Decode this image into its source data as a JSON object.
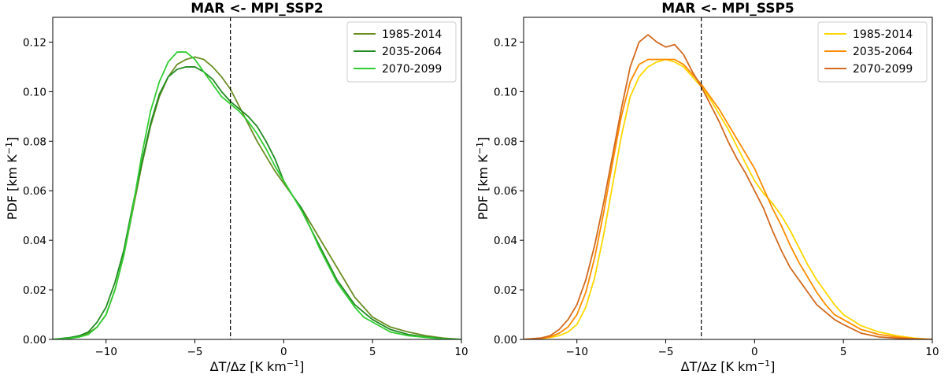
{
  "chart_data": [
    {
      "type": "line",
      "title": "MAR <- MPI_SSP2",
      "xlabel": "ΔT/Δz [K km",
      "xlabel_sup": "−1",
      "xlabel_end": "]",
      "ylabel": "PDF [km K",
      "ylabel_sup": "−1",
      "ylabel_end": "]",
      "xlim": [
        -13,
        10
      ],
      "ylim": [
        0,
        0.13
      ],
      "xticks": [
        -10,
        -5,
        0,
        5,
        10
      ],
      "xtick_labels": [
        "−10",
        "−5",
        "0",
        "5",
        "10"
      ],
      "yticks": [
        0,
        0.02,
        0.04,
        0.06,
        0.08,
        0.1,
        0.12
      ],
      "ytick_labels": [
        "0.00",
        "0.02",
        "0.04",
        "0.06",
        "0.08",
        "0.10",
        "0.12"
      ],
      "vline_x": -3,
      "legend_position": "top-right",
      "series": [
        {
          "name": "1985-2014",
          "color": "#6b8e23",
          "x": [
            -13,
            -12,
            -11.5,
            -11,
            -10.5,
            -10,
            -9.5,
            -9,
            -8.5,
            -8,
            -7.5,
            -7,
            -6.5,
            -6,
            -5.5,
            -5,
            -4.5,
            -4,
            -3.5,
            -3,
            -2.5,
            -2,
            -1.5,
            -1,
            -0.5,
            0,
            0.5,
            1,
            1.5,
            2,
            2.5,
            3,
            3.5,
            4,
            4.5,
            5,
            6,
            7,
            8,
            9,
            10
          ],
          "y": [
            0.0,
            0.0005,
            0.001,
            0.0025,
            0.005,
            0.01,
            0.02,
            0.034,
            0.052,
            0.07,
            0.086,
            0.098,
            0.106,
            0.111,
            0.113,
            0.114,
            0.113,
            0.11,
            0.106,
            0.101,
            0.094,
            0.087,
            0.08,
            0.074,
            0.068,
            0.063,
            0.058,
            0.053,
            0.047,
            0.041,
            0.035,
            0.029,
            0.023,
            0.017,
            0.013,
            0.009,
            0.005,
            0.003,
            0.0015,
            0.0005,
            0.0
          ]
        },
        {
          "name": "2035-2064",
          "color": "#228b22",
          "x": [
            -13,
            -12,
            -11.5,
            -11,
            -10.5,
            -10,
            -9.5,
            -9,
            -8.5,
            -8,
            -7.5,
            -7,
            -6.5,
            -6,
            -5.5,
            -5,
            -4.5,
            -4,
            -3.5,
            -3,
            -2.5,
            -2,
            -1.5,
            -1,
            -0.5,
            0,
            0.5,
            1,
            1.5,
            2,
            2.5,
            3,
            3.5,
            4,
            4.5,
            5,
            6,
            7,
            8,
            9,
            10
          ],
          "y": [
            0.0,
            0.0008,
            0.0015,
            0.003,
            0.007,
            0.013,
            0.023,
            0.036,
            0.054,
            0.071,
            0.087,
            0.099,
            0.106,
            0.109,
            0.11,
            0.11,
            0.108,
            0.105,
            0.1,
            0.096,
            0.093,
            0.09,
            0.086,
            0.08,
            0.073,
            0.064,
            0.058,
            0.053,
            0.045,
            0.038,
            0.031,
            0.024,
            0.019,
            0.014,
            0.011,
            0.008,
            0.004,
            0.002,
            0.001,
            0.0003,
            0.0
          ]
        },
        {
          "name": "2070-2099",
          "color": "#32cd32",
          "x": [
            -13,
            -12,
            -11.5,
            -11,
            -10.5,
            -10,
            -9.5,
            -9,
            -8.5,
            -8,
            -7.5,
            -7,
            -6.5,
            -6,
            -5.5,
            -5,
            -4.5,
            -4,
            -3.5,
            -3,
            -2.5,
            -2,
            -1.5,
            -1,
            -0.5,
            0,
            0.5,
            1,
            1.5,
            2,
            2.5,
            3,
            3.5,
            4,
            4.5,
            5,
            6,
            7,
            8,
            9,
            10
          ],
          "y": [
            0.0,
            0.0005,
            0.001,
            0.002,
            0.005,
            0.01,
            0.02,
            0.034,
            0.053,
            0.074,
            0.092,
            0.104,
            0.112,
            0.116,
            0.116,
            0.113,
            0.108,
            0.103,
            0.098,
            0.095,
            0.092,
            0.088,
            0.083,
            0.077,
            0.07,
            0.064,
            0.058,
            0.052,
            0.045,
            0.037,
            0.03,
            0.023,
            0.018,
            0.013,
            0.009,
            0.007,
            0.003,
            0.0015,
            0.0008,
            0.0002,
            0.0
          ]
        }
      ]
    },
    {
      "type": "line",
      "title": "MAR <- MPI_SSP5",
      "xlabel": "ΔT/Δz [K km",
      "xlabel_sup": "−1",
      "xlabel_end": "]",
      "ylabel": "PDF [km K",
      "ylabel_sup": "−1",
      "ylabel_end": "]",
      "xlim": [
        -13,
        10
      ],
      "ylim": [
        0,
        0.13
      ],
      "xticks": [
        -10,
        -5,
        0,
        5,
        10
      ],
      "xtick_labels": [
        "−10",
        "−5",
        "0",
        "5",
        "10"
      ],
      "yticks": [
        0,
        0.02,
        0.04,
        0.06,
        0.08,
        0.1,
        0.12
      ],
      "ytick_labels": [
        "0.00",
        "0.02",
        "0.04",
        "0.06",
        "0.08",
        "0.10",
        "0.12"
      ],
      "vline_x": -3,
      "legend_position": "top-right",
      "series": [
        {
          "name": "1985-2014",
          "color": "#ffd700",
          "x": [
            -13,
            -12,
            -11.5,
            -11,
            -10.5,
            -10,
            -9.5,
            -9,
            -8.5,
            -8,
            -7.5,
            -7,
            -6.5,
            -6,
            -5.5,
            -5,
            -4.5,
            -4,
            -3.5,
            -3,
            -2.5,
            -2,
            -1.5,
            -1,
            -0.5,
            0,
            0.5,
            1,
            1.5,
            2,
            2.5,
            3,
            3.5,
            4,
            4.5,
            5,
            6,
            7,
            8,
            9,
            10
          ],
          "y": [
            0.0,
            0.0003,
            0.0008,
            0.0015,
            0.003,
            0.006,
            0.013,
            0.025,
            0.042,
            0.062,
            0.082,
            0.098,
            0.106,
            0.11,
            0.112,
            0.113,
            0.112,
            0.11,
            0.106,
            0.102,
            0.097,
            0.091,
            0.085,
            0.078,
            0.071,
            0.064,
            0.059,
            0.055,
            0.05,
            0.044,
            0.037,
            0.03,
            0.024,
            0.019,
            0.014,
            0.01,
            0.0055,
            0.003,
            0.0015,
            0.0005,
            0.0
          ]
        },
        {
          "name": "2035-2064",
          "color": "#ff8c00",
          "x": [
            -13,
            -12,
            -11.5,
            -11,
            -10.5,
            -10,
            -9.5,
            -9,
            -8.5,
            -8,
            -7.5,
            -7,
            -6.5,
            -6,
            -5.5,
            -5,
            -4.5,
            -4,
            -3.5,
            -3,
            -2.5,
            -2,
            -1.5,
            -1,
            -0.5,
            0,
            0.5,
            1,
            1.5,
            2,
            2.5,
            3,
            3.5,
            4,
            4.5,
            5,
            6,
            7,
            8,
            9,
            10
          ],
          "y": [
            0.0,
            0.0005,
            0.001,
            0.0025,
            0.005,
            0.01,
            0.019,
            0.033,
            0.051,
            0.071,
            0.09,
            0.104,
            0.111,
            0.113,
            0.113,
            0.113,
            0.113,
            0.111,
            0.107,
            0.103,
            0.098,
            0.093,
            0.087,
            0.081,
            0.075,
            0.069,
            0.061,
            0.053,
            0.046,
            0.038,
            0.031,
            0.025,
            0.019,
            0.014,
            0.01,
            0.008,
            0.004,
            0.002,
            0.001,
            0.0003,
            0.0
          ]
        },
        {
          "name": "2070-2099",
          "color": "#d2691e",
          "x": [
            -13,
            -12,
            -11.5,
            -11,
            -10.5,
            -10,
            -9.5,
            -9,
            -8.5,
            -8,
            -7.5,
            -7,
            -6.5,
            -6,
            -5.5,
            -5,
            -4.5,
            -4,
            -3.5,
            -3,
            -2.5,
            -2,
            -1.5,
            -1,
            -0.5,
            0,
            0.5,
            1,
            1.5,
            2,
            2.5,
            3,
            3.5,
            4,
            4.5,
            5,
            6,
            7,
            8,
            9,
            10
          ],
          "y": [
            0.0,
            0.0006,
            0.0015,
            0.004,
            0.008,
            0.014,
            0.024,
            0.038,
            0.055,
            0.074,
            0.093,
            0.11,
            0.12,
            0.123,
            0.12,
            0.118,
            0.119,
            0.115,
            0.108,
            0.102,
            0.095,
            0.088,
            0.08,
            0.073,
            0.067,
            0.06,
            0.053,
            0.044,
            0.036,
            0.029,
            0.024,
            0.019,
            0.014,
            0.011,
            0.008,
            0.006,
            0.0025,
            0.001,
            0.0005,
            0.0002,
            0.0
          ]
        }
      ]
    }
  ]
}
